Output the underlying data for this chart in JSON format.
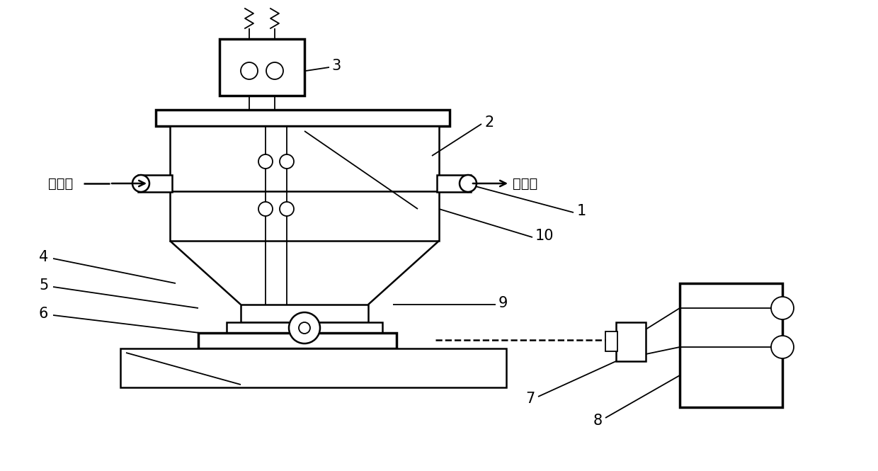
{
  "bg_color": "#ffffff",
  "lc": "#000000",
  "lw": 1.8,
  "lw_thin": 1.3,
  "lw_thick": 2.5,
  "figsize": [
    12.4,
    6.65
  ],
  "dpi": 100
}
